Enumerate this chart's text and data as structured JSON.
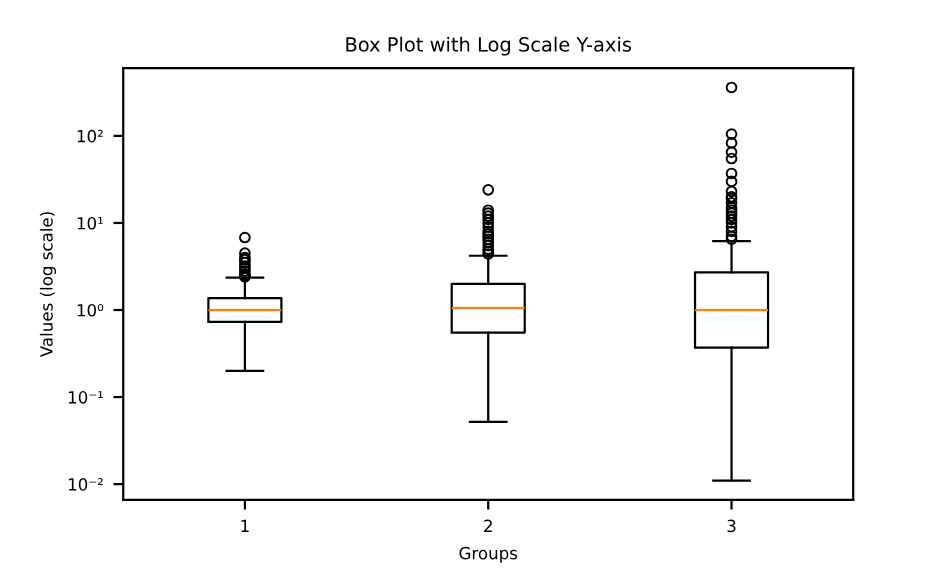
{
  "chart_data": {
    "type": "box",
    "title": "Box Plot with Log Scale Y-axis",
    "xlabel": "Groups",
    "ylabel": "Values (log scale)",
    "categories": [
      "1",
      "2",
      "3"
    ],
    "log": true,
    "ylim": [
      0.0066,
      600
    ],
    "yticks": [
      {
        "value": 0.01,
        "label": "10⁻²"
      },
      {
        "value": 0.1,
        "label": "10⁻¹"
      },
      {
        "value": 1,
        "label": "10⁰"
      },
      {
        "value": 10,
        "label": "10¹"
      },
      {
        "value": 100,
        "label": "10²"
      }
    ],
    "grid": false,
    "boxes": [
      {
        "low": 0.2,
        "q1": 0.73,
        "median": 1.0,
        "q3": 1.37,
        "high": 2.35,
        "outliers": [
          2.4,
          2.5,
          2.6,
          2.8,
          3.0,
          3.2,
          3.5,
          3.8,
          4.0,
          4.5,
          6.8
        ]
      },
      {
        "low": 0.052,
        "q1": 0.55,
        "median": 1.05,
        "q3": 2.0,
        "high": 4.2,
        "outliers": [
          4.4,
          4.7,
          5.0,
          5.5,
          6.0,
          6.5,
          7.0,
          7.5,
          8.0,
          9.0,
          10,
          11,
          12,
          13,
          14,
          24
        ]
      },
      {
        "low": 0.011,
        "q1": 0.37,
        "median": 1.0,
        "q3": 2.7,
        "high": 6.2,
        "outliers": [
          6.5,
          7.0,
          8.0,
          9.0,
          10,
          11,
          12,
          13,
          14,
          15,
          17,
          19,
          20,
          23,
          30,
          37,
          55,
          65,
          83,
          105,
          360
        ]
      }
    ]
  }
}
